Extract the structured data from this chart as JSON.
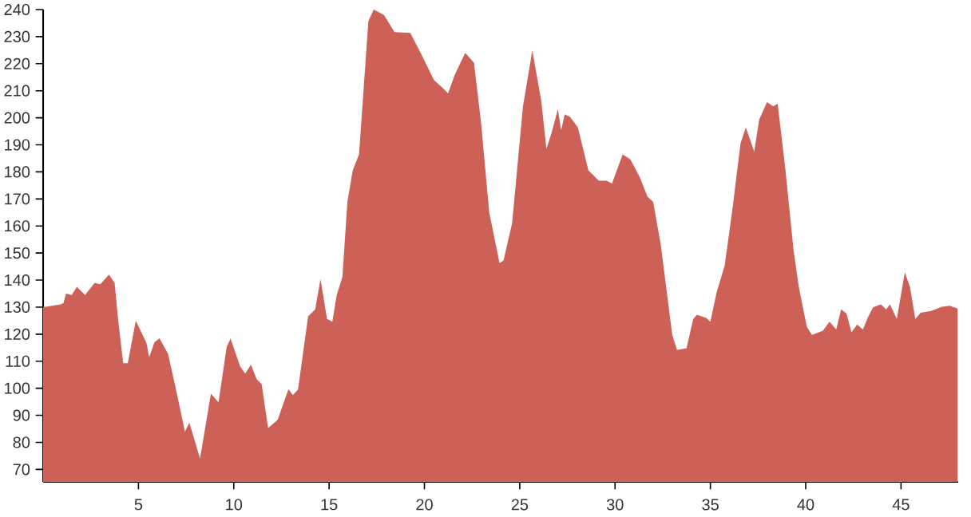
{
  "chart_data": {
    "type": "area",
    "color": "#cd6158",
    "xlim": [
      0,
      48
    ],
    "ylim": [
      65.4,
      240
    ],
    "xticks": [
      5,
      10,
      15,
      20,
      25,
      30,
      35,
      40,
      45
    ],
    "yticks": [
      70,
      80,
      90,
      100,
      110,
      120,
      130,
      140,
      150,
      160,
      170,
      180,
      190,
      200,
      210,
      220,
      230,
      240
    ],
    "grid": false,
    "x": [
      0,
      0.93,
      1.07,
      1.2,
      1.5,
      1.77,
      2.2,
      2.7,
      3.0,
      3.45,
      3.75,
      3.93,
      4.2,
      4.44,
      4.86,
      5.42,
      5.56,
      5.84,
      6.1,
      6.55,
      6.97,
      7.44,
      7.67,
      8.23,
      8.8,
      9.2,
      9.63,
      9.83,
      10.34,
      10.6,
      10.9,
      11.2,
      11.46,
      11.8,
      12.3,
      12.87,
      13.1,
      13.37,
      13.9,
      14.27,
      14.55,
      14.89,
      15.17,
      15.4,
      15.7,
      15.96,
      16.24,
      16.57,
      17.06,
      17.34,
      17.88,
      18.43,
      19.26,
      19.8,
      20.5,
      20.96,
      21.24,
      21.6,
      22.14,
      22.6,
      22.97,
      23.4,
      23.94,
      24.15,
      24.6,
      25.17,
      25.66,
      26.13,
      26.4,
      26.67,
      27.0,
      27.17,
      27.36,
      27.64,
      28.05,
      28.6,
      29.15,
      29.56,
      29.84,
      30.4,
      30.8,
      31.3,
      31.7,
      32.0,
      32.4,
      33.0,
      33.25,
      33.75,
      34.1,
      34.3,
      34.78,
      35.0,
      35.33,
      35.75,
      36.17,
      36.58,
      36.86,
      37.08,
      37.3,
      37.56,
      37.97,
      38.3,
      38.53,
      38.94,
      39.36,
      39.64,
      40.06,
      40.33,
      40.9,
      41.25,
      41.6,
      41.86,
      42.14,
      42.4,
      42.7,
      43.0,
      43.25,
      43.53,
      43.94,
      44.22,
      44.42,
      44.78,
      45.2,
      45.47,
      45.75,
      46.03,
      46.58,
      47.14,
      47.56,
      47.97
    ],
    "values": [
      130,
      131,
      131.5,
      135,
      134.5,
      137.5,
      134.5,
      139,
      138.5,
      142,
      139,
      125.6,
      109.3,
      109.3,
      125,
      116.8,
      111.5,
      117,
      118.5,
      112.8,
      99.5,
      84,
      87.3,
      74,
      98,
      94.8,
      115.4,
      118.3,
      108,
      105.4,
      108.7,
      103.4,
      101.6,
      85.3,
      88.3,
      99.7,
      97.5,
      99.5,
      126.6,
      129.2,
      140.4,
      125.6,
      124.6,
      134.5,
      141.3,
      168.9,
      180.6,
      186.5,
      235.7,
      240,
      238,
      231.7,
      231.4,
      224,
      214,
      211,
      209,
      216,
      224,
      220.3,
      198.3,
      165,
      146.3,
      147.2,
      161,
      204.2,
      224.9,
      206.2,
      188.5,
      194.4,
      203.2,
      195.4,
      201.3,
      200.3,
      196.4,
      180.6,
      176.7,
      176.7,
      175.7,
      186.5,
      184.6,
      178,
      170.8,
      168.9,
      153,
      119.7,
      114.2,
      114.8,
      125.6,
      127.2,
      126,
      124.6,
      135.5,
      145.3,
      166.9,
      190.5,
      196.4,
      192,
      187.5,
      199.3,
      205.8,
      204.2,
      205.2,
      180.6,
      151.2,
      137.4,
      122.7,
      119.7,
      121.3,
      124.6,
      121.7,
      129.2,
      127.6,
      120.7,
      123.6,
      121.7,
      126,
      129.9,
      131,
      129.2,
      131,
      125.6,
      142.9,
      137.4,
      125.6,
      127.9,
      128.6,
      130.1,
      130.5,
      129.5
    ]
  }
}
